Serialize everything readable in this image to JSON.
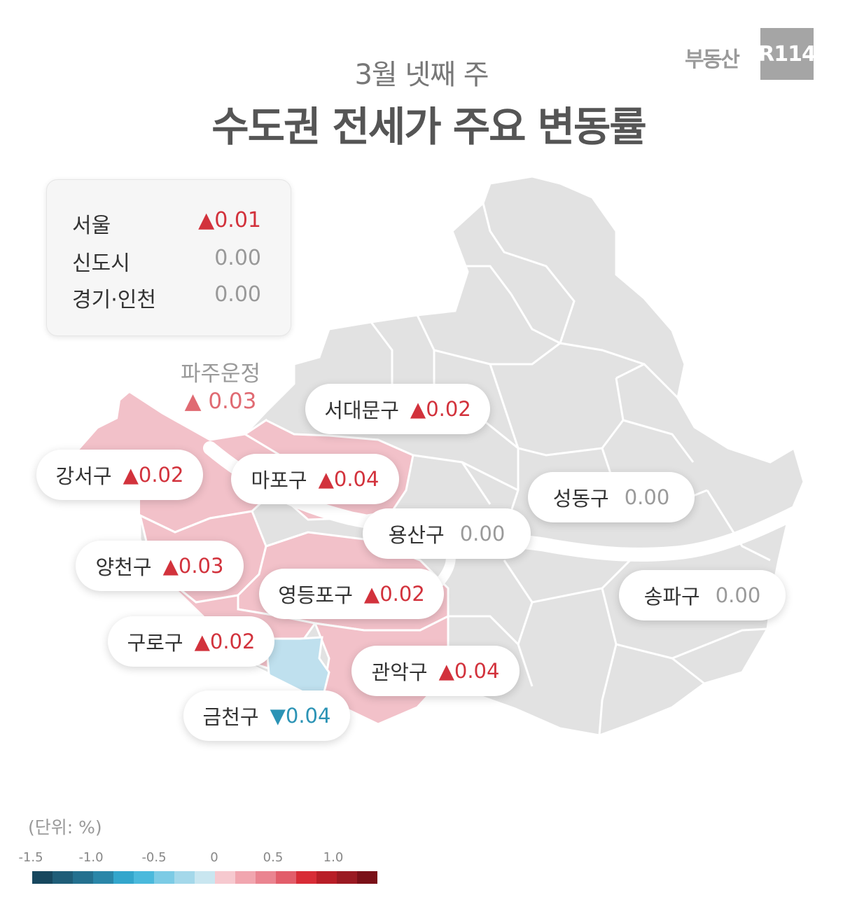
{
  "header": {
    "subtitle": "3월 넷째 주",
    "title": "수도권 전세가 주요 변동률"
  },
  "logo": {
    "text": "부동산",
    "box": "R114"
  },
  "summary": [
    {
      "label": "서울",
      "value": "▲0.01",
      "trend": "up"
    },
    {
      "label": "신도시",
      "value": "0.00",
      "trend": "flat"
    },
    {
      "label": "경기·인천",
      "value": "0.00",
      "trend": "flat"
    }
  ],
  "paju": {
    "name": "파주운정",
    "value": "▲ 0.03",
    "trend": "up"
  },
  "districts": [
    {
      "name": "서대문구",
      "value": "▲0.02",
      "trend": "up"
    },
    {
      "name": "강서구",
      "value": "▲0.02",
      "trend": "up"
    },
    {
      "name": "마포구",
      "value": "▲0.04",
      "trend": "up"
    },
    {
      "name": "성동구",
      "value": "0.00",
      "trend": "flat"
    },
    {
      "name": "용산구",
      "value": "0.00",
      "trend": "flat"
    },
    {
      "name": "양천구",
      "value": "▲0.03",
      "trend": "up"
    },
    {
      "name": "영등포구",
      "value": "▲0.02",
      "trend": "up"
    },
    {
      "name": "송파구",
      "value": "0.00",
      "trend": "flat"
    },
    {
      "name": "구로구",
      "value": "▲0.02",
      "trend": "up"
    },
    {
      "name": "관악구",
      "value": "▲0.04",
      "trend": "up"
    },
    {
      "name": "금천구",
      "value": "▼0.04",
      "trend": "down"
    }
  ],
  "legend": {
    "unit": "(단위:  %)",
    "ticks": [
      "-1.5",
      "-1.0",
      "-0.5",
      "0",
      "0.5",
      "1.0"
    ],
    "colors": [
      "#17475e",
      "#1f5d78",
      "#24708f",
      "#2a86a8",
      "#33a6cc",
      "#4ab9dc",
      "#7ccbe5",
      "#a4d8ea",
      "#c9e6f0",
      "#f6c9cf",
      "#f1a6af",
      "#ea8490",
      "#e25d6a",
      "#d82c36",
      "#b81e27",
      "#9a1a22",
      "#7a1018"
    ],
    "neutral_region": "#e2e2e2",
    "increase_region": "#f2c1c9",
    "decrease_region": "#bfe0ee"
  }
}
